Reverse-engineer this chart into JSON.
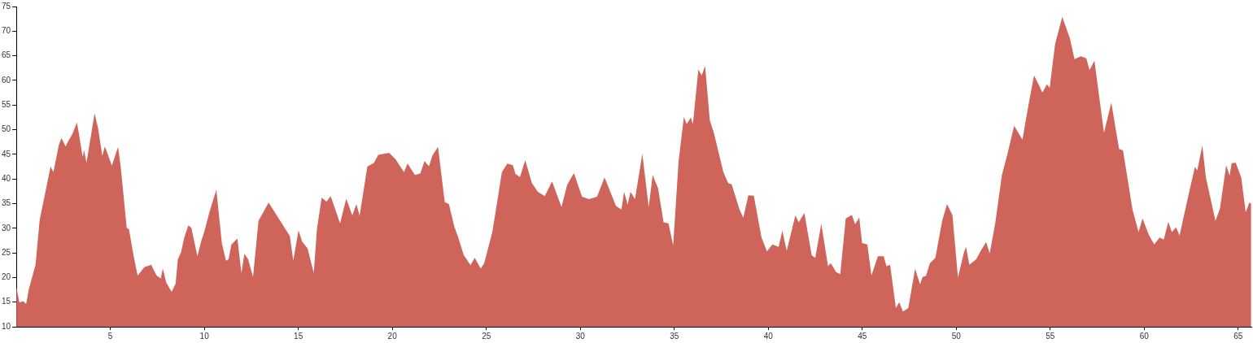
{
  "chart_data": {
    "type": "area",
    "color": "#cf645a",
    "xlim": [
      0,
      65.7
    ],
    "ylim": [
      10,
      75
    ],
    "xticks": [
      5,
      10,
      15,
      20,
      25,
      30,
      35,
      40,
      45,
      50,
      55,
      60,
      65
    ],
    "yticks": [
      10,
      15,
      20,
      25,
      30,
      35,
      40,
      45,
      50,
      55,
      60,
      65,
      70,
      75
    ],
    "x": [
      0,
      0.16,
      0.36,
      0.52,
      0.66,
      1.02,
      1.24,
      1.82,
      1.97,
      2.26,
      2.4,
      2.62,
      2.76,
      2.98,
      3.22,
      3.34,
      3.53,
      3.6,
      3.73,
      4.16,
      4.35,
      4.57,
      4.71,
      5.08,
      5.41,
      5.55,
      5.87,
      5.99,
      6.23,
      6.45,
      6.81,
      7.17,
      7.46,
      7.68,
      7.79,
      7.97,
      8.26,
      8.47,
      8.59,
      8.76,
      8.93,
      9.15,
      9.31,
      9.63,
      9.85,
      9.99,
      10.28,
      10.64,
      10.93,
      11.15,
      11.29,
      11.44,
      11.76,
      11.97,
      12.13,
      12.33,
      12.59,
      12.88,
      13.42,
      14.55,
      14.73,
      15.01,
      15.2,
      15.49,
      15.82,
      15.99,
      16.24,
      16.5,
      16.72,
      17.22,
      17.55,
      17.87,
      18.09,
      18.26,
      18.67,
      19.03,
      19.25,
      19.83,
      20.19,
      20.62,
      20.81,
      21.2,
      21.49,
      21.71,
      21.95,
      22.14,
      22.43,
      22.79,
      23.01,
      23.3,
      23.51,
      23.8,
      24.16,
      24.38,
      24.71,
      24.89,
      25.32,
      25.83,
      26.12,
      26.41,
      26.55,
      26.79,
      27.07,
      27.42,
      27.74,
      28.11,
      28.5,
      29.0,
      29.3,
      29.66,
      30.09,
      30.46,
      30.89,
      31.29,
      31.9,
      32.19,
      32.33,
      32.52,
      32.67,
      32.91,
      33.3,
      33.64,
      33.85,
      34.14,
      34.43,
      34.69,
      34.94,
      35.23,
      35.51,
      35.66,
      35.88,
      35.99,
      36.28,
      36.46,
      36.64,
      36.89,
      37.11,
      37.61,
      37.87,
      38.05,
      38.48,
      38.67,
      38.94,
      39.23,
      39.64,
      39.93,
      40.22,
      40.55,
      40.75,
      40.98,
      41.44,
      41.62,
      41.92,
      42.31,
      42.5,
      42.82,
      43.18,
      43.32,
      43.61,
      43.83,
      44.12,
      44.45,
      44.62,
      44.84,
      44.99,
      45.27,
      45.49,
      45.83,
      46.14,
      46.29,
      46.48,
      46.79,
      46.97,
      47.16,
      47.45,
      47.81,
      48.07,
      48.21,
      48.39,
      48.6,
      48.89,
      49.25,
      49.51,
      49.8,
      50.09,
      50.41,
      50.52,
      50.7,
      51.06,
      51.35,
      51.59,
      51.78,
      52.07,
      52.43,
      52.72,
      53.08,
      53.52,
      53.88,
      54.14,
      54.43,
      54.58,
      54.82,
      54.97,
      55.26,
      55.64,
      56.05,
      56.29,
      56.63,
      56.92,
      57.09,
      57.35,
      57.86,
      58.25,
      58.66,
      58.87,
      59.38,
      59.7,
      59.91,
      60.24,
      60.53,
      60.82,
      61.04,
      61.28,
      61.47,
      61.69,
      61.88,
      62.27,
      62.7,
      62.82,
      63.09,
      63.28,
      63.79,
      64.03,
      64.36,
      64.54,
      64.65,
      64.87,
      65.16,
      65.4,
      65.59,
      65.69
    ],
    "values": [
      18.1,
      14.9,
      15.2,
      14.6,
      17.6,
      22.6,
      31.7,
      42.5,
      41.4,
      46.9,
      48.3,
      46.6,
      47.7,
      49.1,
      51.5,
      48.9,
      44.4,
      45.9,
      43.3,
      53.3,
      50.2,
      44.7,
      46.6,
      42.7,
      46.5,
      42.5,
      30.1,
      29.8,
      24.5,
      20.4,
      22.1,
      22.6,
      20.4,
      19.8,
      21.8,
      19.0,
      17.1,
      18.7,
      23.7,
      25.1,
      28.1,
      30.6,
      30.1,
      24.3,
      27.6,
      29.2,
      33.4,
      37.8,
      27.0,
      23.4,
      23.7,
      26.7,
      27.9,
      20.9,
      24.8,
      23.7,
      20.1,
      31.5,
      35.2,
      28.4,
      23.4,
      29.6,
      27.3,
      25.9,
      20.9,
      29.8,
      36.2,
      35.4,
      36.5,
      31.0,
      36.0,
      32.6,
      34.9,
      32.5,
      42.5,
      43.3,
      44.9,
      45.3,
      43.9,
      41.4,
      43.1,
      40.8,
      41.1,
      43.6,
      42.6,
      44.8,
      46.5,
      35.3,
      34.9,
      30.3,
      28.1,
      24.5,
      22.5,
      24.0,
      21.8,
      22.9,
      29.2,
      41.4,
      43.1,
      42.8,
      41.0,
      40.4,
      43.8,
      39.2,
      37.4,
      36.5,
      39.5,
      34.3,
      38.8,
      41.2,
      36.4,
      35.9,
      36.4,
      40.3,
      34.5,
      33.8,
      37.4,
      34.8,
      37.4,
      35.9,
      45.1,
      34.3,
      40.8,
      38.1,
      31.2,
      31.0,
      26.5,
      43.6,
      52.6,
      51.1,
      52.5,
      51.1,
      62.2,
      61.0,
      62.9,
      51.9,
      49.3,
      41.4,
      39.1,
      38.9,
      33.7,
      32.1,
      36.7,
      36.6,
      28.1,
      25.3,
      26.7,
      26.2,
      29.5,
      25.4,
      32.6,
      31.2,
      33.1,
      24.5,
      24.0,
      30.9,
      22.3,
      22.9,
      21.1,
      20.7,
      32.0,
      32.7,
      30.8,
      32.2,
      27.0,
      26.7,
      20.4,
      24.3,
      24.3,
      22.3,
      22.6,
      13.8,
      15.0,
      13.1,
      13.8,
      21.8,
      18.6,
      20.1,
      20.3,
      22.9,
      24.0,
      31.5,
      34.9,
      32.6,
      20.0,
      25.1,
      26.2,
      22.6,
      23.7,
      25.7,
      27.2,
      24.9,
      30.9,
      40.8,
      45.0,
      50.8,
      48.0,
      55.8,
      61.0,
      58.8,
      57.5,
      59.2,
      58.5,
      67.4,
      72.9,
      68.5,
      64.3,
      64.9,
      64.5,
      62.1,
      64.0,
      49.4,
      55.5,
      46.1,
      45.8,
      33.7,
      29.2,
      32.0,
      28.7,
      26.7,
      28.1,
      27.7,
      31.3,
      29.2,
      30.2,
      28.5,
      35.3,
      42.5,
      41.7,
      46.8,
      40.3,
      31.5,
      34.0,
      42.8,
      40.7,
      43.2,
      43.3,
      40.3,
      33.2,
      35.2,
      35.0
    ]
  }
}
